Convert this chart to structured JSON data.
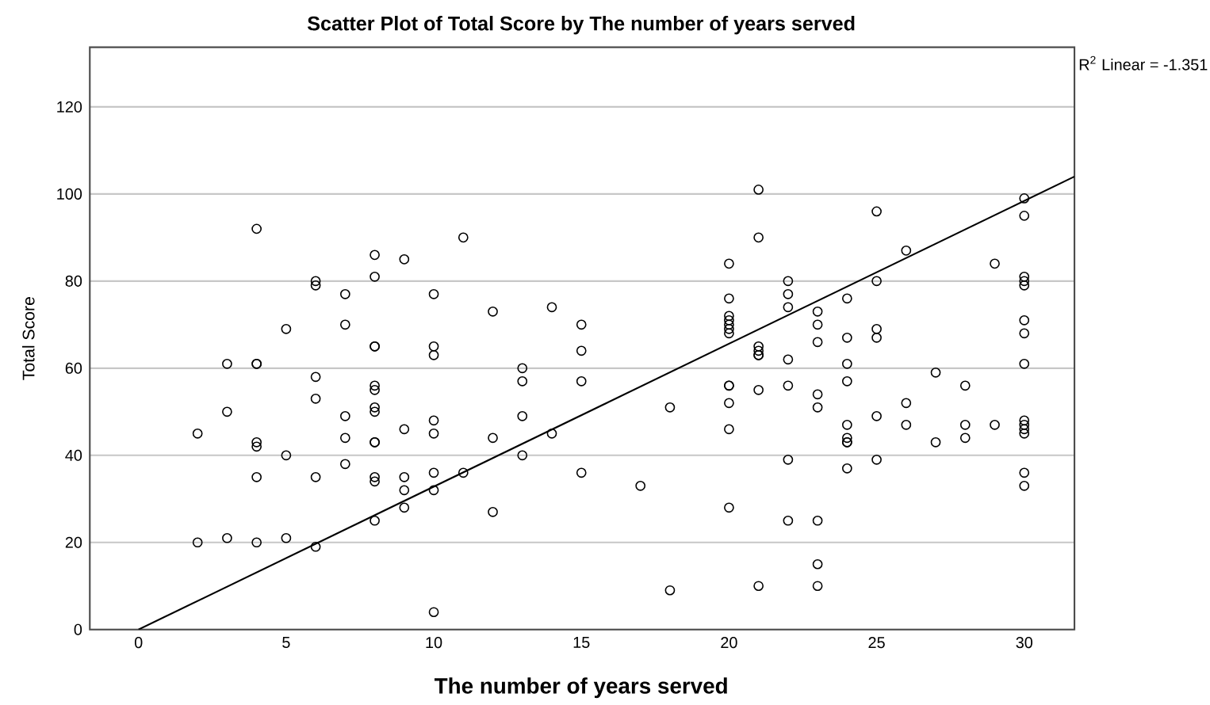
{
  "chart_data": {
    "type": "scatter",
    "title": "Scatter Plot of Total Score by The number of years served",
    "xlabel": "The number of years served",
    "ylabel": "Total Score",
    "annotations": [
      "R$^{2}$ Linear = -1.351"
    ],
    "xlim": [
      -1.65,
      31.7
    ],
    "ylim": [
      0,
      133.7
    ],
    "xticks": [
      0,
      5,
      10,
      15,
      20,
      25,
      30
    ],
    "yticks": [
      0,
      20,
      40,
      60,
      80,
      100,
      120
    ],
    "grid": "y",
    "series": [
      {
        "marker": "circle",
        "color": "#000000",
        "x": [
          2,
          2,
          3,
          3,
          3,
          4,
          4,
          4,
          4,
          4,
          4,
          4,
          5,
          5,
          5,
          6,
          6,
          6,
          6,
          6,
          6,
          7,
          7,
          7,
          7,
          7,
          8,
          8,
          8,
          8,
          8,
          8,
          8,
          8,
          8,
          8,
          8,
          8,
          8,
          9,
          9,
          9,
          9,
          9,
          10,
          10,
          10,
          10,
          10,
          10,
          10,
          10,
          11,
          11,
          12,
          12,
          12,
          13,
          13,
          13,
          13,
          14,
          14,
          15,
          15,
          15,
          15,
          17,
          18,
          18,
          20,
          20,
          20,
          20,
          20,
          20,
          20,
          20,
          20,
          20,
          20,
          20,
          21,
          21,
          21,
          21,
          21,
          21,
          21,
          21,
          22,
          22,
          22,
          22,
          22,
          22,
          22,
          23,
          23,
          23,
          23,
          23,
          23,
          23,
          23,
          24,
          24,
          24,
          24,
          24,
          24,
          24,
          24,
          24,
          25,
          25,
          25,
          25,
          25,
          25,
          26,
          26,
          26,
          27,
          27,
          28,
          28,
          28,
          29,
          29,
          30,
          30,
          30,
          30,
          30,
          30,
          30,
          30,
          30,
          30,
          30,
          30,
          30,
          30
        ],
        "values": [
          45,
          20,
          61,
          50,
          21,
          92,
          61,
          61,
          43,
          42,
          35,
          20,
          69,
          40,
          21,
          80,
          79,
          58,
          53,
          35,
          19,
          77,
          70,
          49,
          44,
          38,
          86,
          81,
          65,
          65,
          56,
          55,
          51,
          50,
          43,
          43,
          35,
          34,
          25,
          85,
          46,
          35,
          32,
          28,
          77,
          65,
          63,
          48,
          45,
          36,
          32,
          4,
          90,
          36,
          73,
          44,
          27,
          60,
          57,
          49,
          40,
          74,
          45,
          70,
          64,
          57,
          36,
          33,
          51,
          9,
          84,
          76,
          72,
          71,
          70,
          69,
          68,
          56,
          56,
          52,
          46,
          28,
          101,
          90,
          65,
          64,
          63,
          63,
          55,
          10,
          80,
          77,
          74,
          62,
          56,
          39,
          25,
          73,
          70,
          66,
          54,
          51,
          25,
          15,
          10,
          76,
          67,
          61,
          57,
          47,
          44,
          43,
          43,
          37,
          96,
          80,
          69,
          67,
          49,
          39,
          87,
          52,
          47,
          59,
          43,
          56,
          47,
          44,
          84,
          47,
          99,
          95,
          81,
          80,
          79,
          71,
          68,
          61,
          48,
          47,
          46,
          45,
          36,
          33
        ]
      },
      {
        "type": "line",
        "color": "#000000",
        "x": [
          0,
          31.7
        ],
        "values": [
          0,
          104
        ]
      }
    ]
  }
}
